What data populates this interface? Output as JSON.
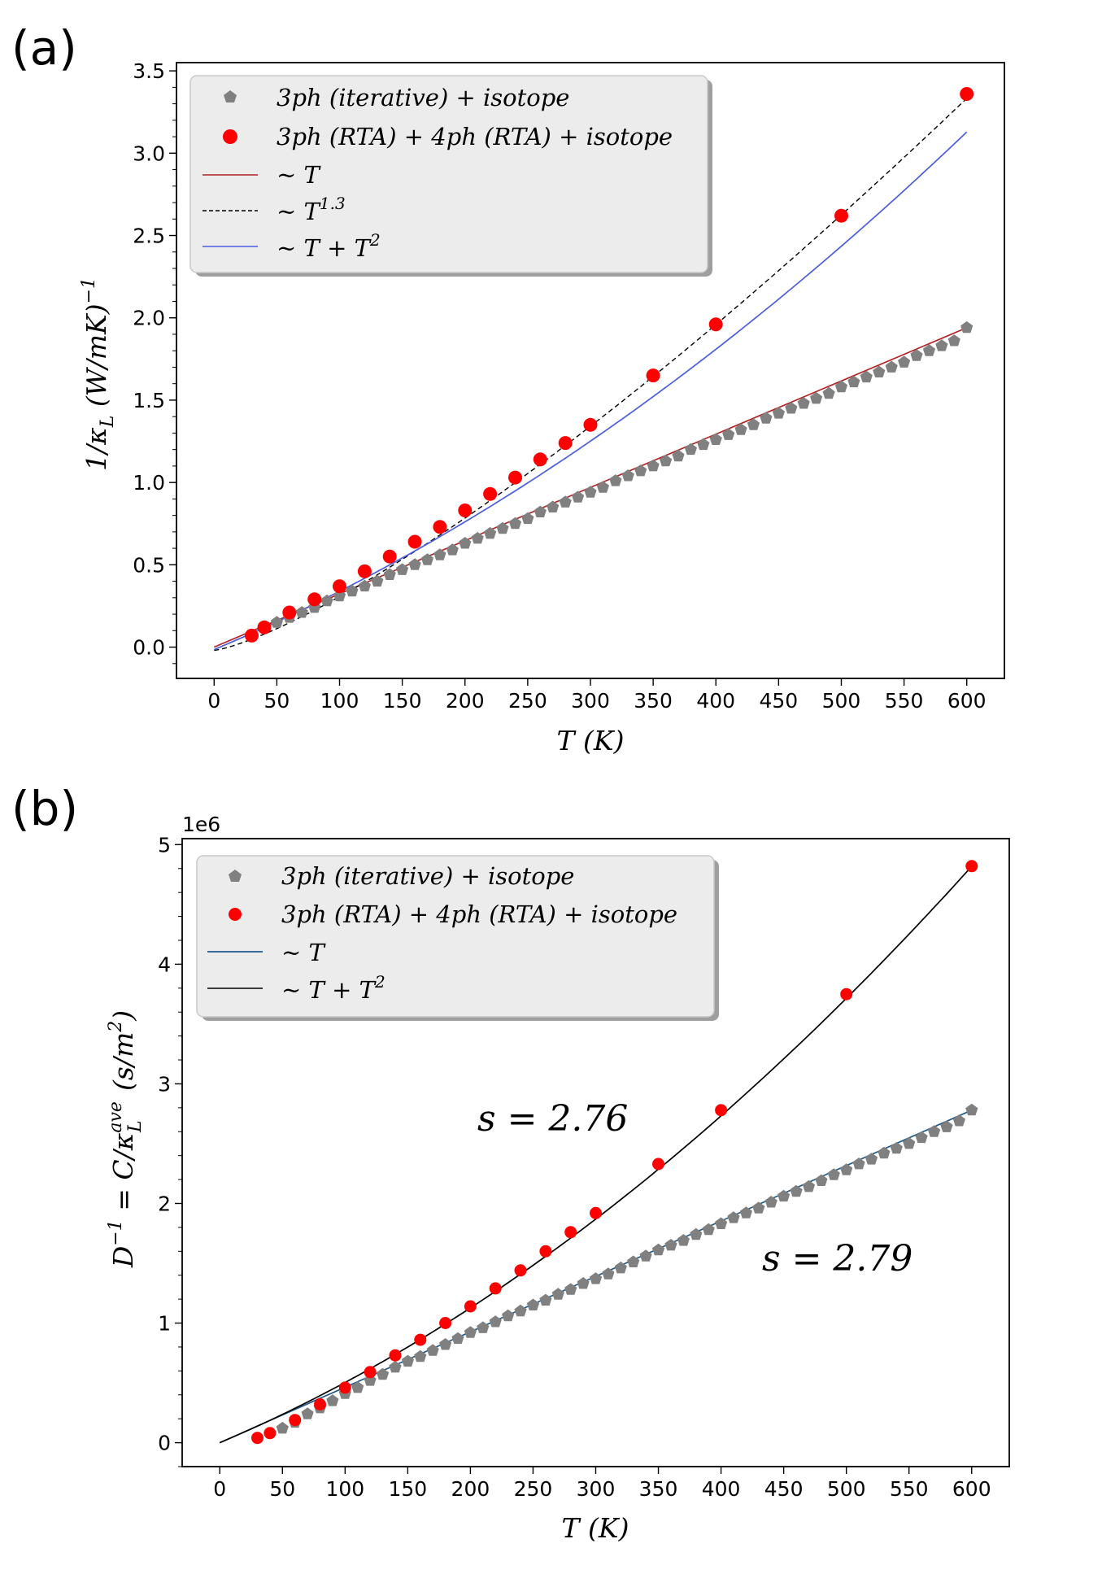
{
  "charts": [
    {
      "panel": "(a)",
      "xlabel": "T (K)",
      "ylabel": "1/κ_L (W/mK)^-1",
      "xlim": [
        -30,
        630
      ],
      "ylim": [
        -0.19,
        3.55
      ],
      "xticks": [
        0,
        50,
        100,
        150,
        200,
        250,
        300,
        350,
        400,
        450,
        500,
        550,
        600
      ],
      "yticks": [
        0.0,
        0.5,
        1.0,
        1.5,
        2.0,
        2.5,
        3.0,
        3.5
      ],
      "yticklabels": [
        "0.0",
        "0.5",
        "1.0",
        "1.5",
        "2.0",
        "2.5",
        "3.0",
        "3.5"
      ],
      "legend": [
        {
          "label": "3ph (iterative) + isotope",
          "marker": "pentagon",
          "color": "#808080"
        },
        {
          "label": "3ph (RTA) + 4ph (RTA) + isotope",
          "marker": "circle",
          "color": "#ff0000"
        },
        {
          "label": "~ T",
          "line": "solid",
          "color": "#b22222"
        },
        {
          "label": "~ T^1.3",
          "line": "dashed",
          "color": "#000000"
        },
        {
          "label": "~ T + T^2",
          "line": "solid",
          "color": "#4a5ce0"
        }
      ]
    },
    {
      "panel": "(b)",
      "offset_text": "1e6",
      "xlabel": "T (K)",
      "ylabel": "D^-1 = C/κ_L^ave (s/m^2)",
      "xlim": [
        -30,
        630
      ],
      "ylim": [
        -0.2,
        5.05
      ],
      "xticks": [
        0,
        50,
        100,
        150,
        200,
        250,
        300,
        350,
        400,
        450,
        500,
        550,
        600
      ],
      "yticks": [
        0,
        1,
        2,
        3,
        4,
        5
      ],
      "yticklabels": [
        "0",
        "1",
        "2",
        "3",
        "4",
        "5"
      ],
      "legend": [
        {
          "label": "3ph (iterative) + isotope",
          "marker": "pentagon",
          "color": "#808080"
        },
        {
          "label": "3ph (RTA) + 4ph (RTA) + isotope",
          "marker": "circle",
          "color": "#ff0000"
        },
        {
          "label": "~ T",
          "line": "solid",
          "color": "#1f5a8a"
        },
        {
          "label": "~ T + T^2",
          "line": "solid",
          "color": "#000000"
        }
      ],
      "annotations": [
        {
          "text": "s = 2.76",
          "x": 180,
          "y": 2.72
        },
        {
          "text": "s = 2.79",
          "x": 430,
          "y": 1.53
        }
      ]
    }
  ],
  "chart_data": [
    {
      "type": "scatter",
      "title": "",
      "xlabel": "T (K)",
      "ylabel": "1/κ_L (W/mK)^-1",
      "series": [
        {
          "name": "3ph (iterative) + isotope",
          "x": [
            40,
            50,
            60,
            70,
            80,
            90,
            100,
            110,
            120,
            130,
            140,
            150,
            160,
            170,
            180,
            190,
            200,
            210,
            220,
            230,
            240,
            250,
            260,
            270,
            280,
            290,
            300,
            310,
            320,
            330,
            340,
            350,
            360,
            370,
            380,
            390,
            400,
            410,
            420,
            430,
            440,
            450,
            460,
            470,
            480,
            490,
            500,
            510,
            520,
            530,
            540,
            550,
            560,
            570,
            580,
            590,
            600
          ],
          "y": [
            0.12,
            0.15,
            0.18,
            0.21,
            0.24,
            0.28,
            0.31,
            0.34,
            0.37,
            0.4,
            0.44,
            0.47,
            0.5,
            0.53,
            0.56,
            0.59,
            0.63,
            0.66,
            0.69,
            0.72,
            0.75,
            0.78,
            0.82,
            0.85,
            0.88,
            0.91,
            0.94,
            0.97,
            1.01,
            1.04,
            1.07,
            1.1,
            1.13,
            1.16,
            1.2,
            1.23,
            1.26,
            1.29,
            1.32,
            1.35,
            1.39,
            1.42,
            1.45,
            1.48,
            1.51,
            1.54,
            1.58,
            1.61,
            1.64,
            1.67,
            1.7,
            1.73,
            1.77,
            1.8,
            1.83,
            1.86,
            1.94
          ]
        },
        {
          "name": "3ph (RTA) + 4ph (RTA) + isotope",
          "x": [
            30,
            40,
            60,
            80,
            100,
            120,
            140,
            160,
            180,
            200,
            220,
            240,
            260,
            280,
            300,
            350,
            400,
            500,
            600
          ],
          "y": [
            0.07,
            0.12,
            0.21,
            0.29,
            0.37,
            0.46,
            0.55,
            0.64,
            0.73,
            0.83,
            0.93,
            1.03,
            1.14,
            1.24,
            1.35,
            1.65,
            1.96,
            2.62,
            3.36
          ]
        },
        {
          "name": "~ T",
          "type": "line",
          "x": [
            0,
            600
          ],
          "y": [
            0.0,
            1.94
          ]
        },
        {
          "name": "~ T^1.3",
          "type": "line",
          "func": {
            "form": "a*T^1.3 + b",
            "a": 0.00082,
            "b": -0.02
          },
          "x_range": [
            0,
            600
          ]
        },
        {
          "name": "~ T + T^2",
          "type": "line",
          "func": {
            "form": "a*T + b*T^2 + c",
            "a": 0.0032,
            "b": 3.4e-06,
            "c": -0.015
          },
          "x_range": [
            0,
            600
          ]
        }
      ],
      "xlim": [
        -30,
        630
      ],
      "ylim": [
        -0.19,
        3.55
      ]
    },
    {
      "type": "scatter",
      "title": "",
      "xlabel": "T (K)",
      "ylabel": "D^-1 = C/κ_L^ave (s/m^2)",
      "y_scale": "1e6",
      "series": [
        {
          "name": "3ph (iterative) + isotope",
          "x": [
            50,
            60,
            70,
            80,
            90,
            100,
            110,
            120,
            130,
            140,
            150,
            160,
            170,
            180,
            190,
            200,
            210,
            220,
            230,
            240,
            250,
            260,
            270,
            280,
            290,
            300,
            310,
            320,
            330,
            340,
            350,
            360,
            370,
            380,
            390,
            400,
            410,
            420,
            430,
            440,
            450,
            460,
            470,
            480,
            490,
            500,
            510,
            520,
            530,
            540,
            550,
            560,
            570,
            580,
            590,
            600
          ],
          "y": [
            0.12,
            0.17,
            0.24,
            0.29,
            0.35,
            0.41,
            0.46,
            0.52,
            0.57,
            0.63,
            0.68,
            0.72,
            0.77,
            0.82,
            0.87,
            0.92,
            0.96,
            1.01,
            1.06,
            1.1,
            1.15,
            1.19,
            1.24,
            1.28,
            1.33,
            1.37,
            1.41,
            1.46,
            1.51,
            1.56,
            1.61,
            1.65,
            1.69,
            1.74,
            1.78,
            1.83,
            1.88,
            1.92,
            1.96,
            2.01,
            2.06,
            2.1,
            2.14,
            2.19,
            2.24,
            2.28,
            2.33,
            2.37,
            2.42,
            2.46,
            2.5,
            2.55,
            2.6,
            2.64,
            2.69,
            2.78
          ]
        },
        {
          "name": "3ph (RTA) + 4ph (RTA) + isotope",
          "x": [
            30,
            40,
            60,
            80,
            100,
            120,
            140,
            160,
            180,
            200,
            220,
            240,
            260,
            280,
            300,
            350,
            400,
            500,
            600
          ],
          "y": [
            0.04,
            0.08,
            0.19,
            0.32,
            0.46,
            0.59,
            0.73,
            0.86,
            1.0,
            1.14,
            1.29,
            1.44,
            1.6,
            1.76,
            1.92,
            2.33,
            2.78,
            3.75,
            4.82
          ]
        },
        {
          "name": "~ T",
          "type": "line",
          "x": [
            0,
            600
          ],
          "y": [
            0.0,
            2.78
          ]
        },
        {
          "name": "~ T + T^2",
          "type": "line",
          "func": {
            "form": "a*T + b*T^2",
            "a": 0.004433,
            "b": 5.995e-06
          },
          "x_range": [
            0,
            600
          ]
        }
      ],
      "xlim": [
        -30,
        630
      ],
      "ylim": [
        -0.2,
        5.05
      ]
    }
  ]
}
